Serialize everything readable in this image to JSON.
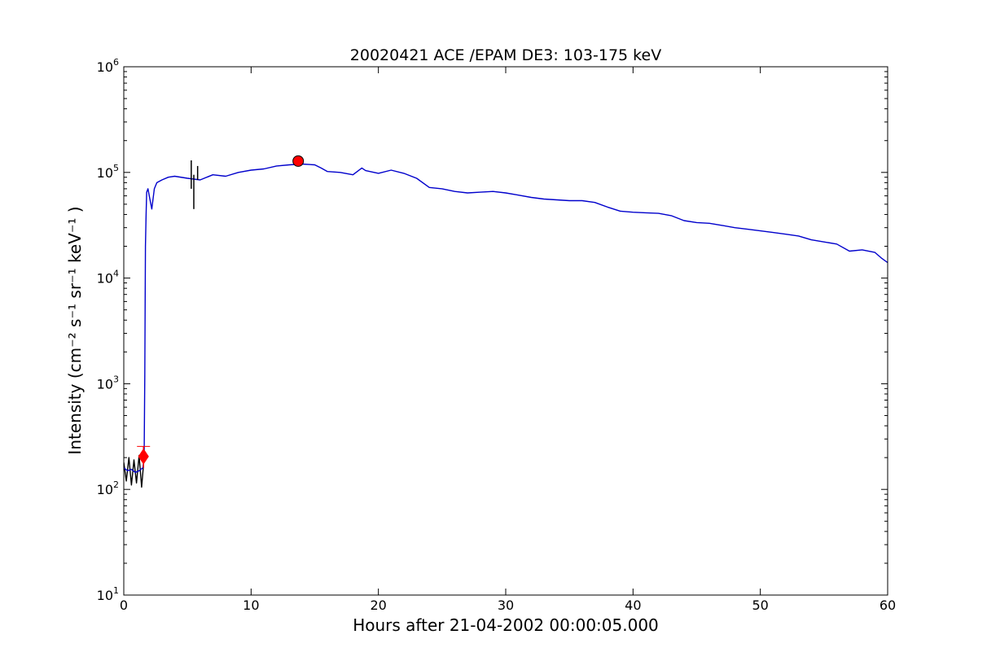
{
  "chart_data": {
    "type": "line",
    "title": "20020421 ACE /EPAM DE3: 103-175 keV",
    "xlabel": "Hours after 21-04-2002 00:00:05.000",
    "ylabel": "Intensity (cm⁻² s⁻¹ sr⁻¹ keV⁻¹ )",
    "xlim": [
      0,
      60
    ],
    "ylim": [
      10,
      1000000
    ],
    "yscale": "log",
    "grid": false,
    "legend": "none",
    "x_ticks": [
      {
        "value": 0,
        "label": "0"
      },
      {
        "value": 10,
        "label": "10"
      },
      {
        "value": 20,
        "label": "20"
      },
      {
        "value": 30,
        "label": "30"
      },
      {
        "value": 40,
        "label": "40"
      },
      {
        "value": 50,
        "label": "50"
      },
      {
        "value": 60,
        "label": "60"
      }
    ],
    "y_ticks": [
      {
        "value": 10,
        "base": "10",
        "exp": "1"
      },
      {
        "value": 100,
        "base": "10",
        "exp": "2"
      },
      {
        "value": 1000,
        "base": "10",
        "exp": "3"
      },
      {
        "value": 10000,
        "base": "10",
        "exp": "4"
      },
      {
        "value": 100000,
        "base": "10",
        "exp": "5"
      },
      {
        "value": 1000000,
        "base": "10",
        "exp": "6"
      }
    ],
    "series": [
      {
        "color": "#0000cc",
        "x": [
          0,
          0.3,
          0.6,
          0.9,
          1.2,
          1.5,
          1.6,
          1.65,
          1.7,
          1.75,
          1.8,
          1.9,
          2.0,
          2.2,
          2.4,
          2.6,
          3.0,
          3.5,
          4,
          5,
          6,
          7,
          8,
          9,
          10,
          11,
          12,
          13,
          14,
          15,
          15.5,
          16,
          17,
          18,
          18.7,
          19,
          20,
          21,
          22,
          23,
          24,
          25,
          26,
          27,
          28,
          29,
          30,
          31,
          32,
          33,
          34,
          35,
          36,
          37,
          38,
          39,
          40,
          41,
          42,
          43,
          44,
          45,
          46,
          47,
          48,
          49,
          50,
          51,
          52,
          53,
          54,
          55,
          56,
          57,
          58,
          59,
          59.5,
          60
        ],
        "y": [
          160,
          150,
          155,
          145,
          150,
          160,
          200,
          1200,
          20000,
          40000,
          65000,
          70000,
          60000,
          45000,
          70000,
          80000,
          85000,
          90000,
          92000,
          88000,
          85000,
          95000,
          92000,
          100000,
          105000,
          108000,
          115000,
          118000,
          120000,
          118000,
          110000,
          102000,
          100000,
          95000,
          110000,
          104000,
          98000,
          105000,
          98000,
          88000,
          72000,
          70000,
          66000,
          64000,
          65000,
          66000,
          64000,
          61000,
          58000,
          56000,
          55000,
          54000,
          54000,
          52000,
          47000,
          43000,
          42000,
          41500,
          41000,
          39000,
          35000,
          33500,
          33000,
          31500,
          30000,
          29000,
          28000,
          27000,
          26000,
          25000,
          23000,
          22000,
          21000,
          18000,
          18500,
          17500,
          15500,
          14000
        ]
      },
      {
        "color": "#000000",
        "x": [
          0,
          0.2,
          0.4,
          0.6,
          0.8,
          1.0,
          1.2,
          1.4,
          1.55
        ],
        "y": [
          180,
          120,
          200,
          110,
          190,
          115,
          210,
          105,
          170
        ]
      }
    ],
    "error_bars": [
      {
        "color": "#000000",
        "x": 5.3,
        "low": 70000,
        "high": 130000
      },
      {
        "color": "#000000",
        "x": 5.5,
        "low": 45000,
        "high": 95000
      },
      {
        "color": "#000000",
        "x": 5.8,
        "low": 85000,
        "high": 115000
      },
      {
        "color": "#ff0000",
        "x": 1.55,
        "low": 160,
        "high": 255
      }
    ],
    "markers": [
      {
        "shape": "circle",
        "color": "#ff0000",
        "x": 13.7,
        "y": 128000
      },
      {
        "shape": "diamond",
        "color": "#ff0000",
        "x": 1.55,
        "y": 205
      }
    ]
  }
}
